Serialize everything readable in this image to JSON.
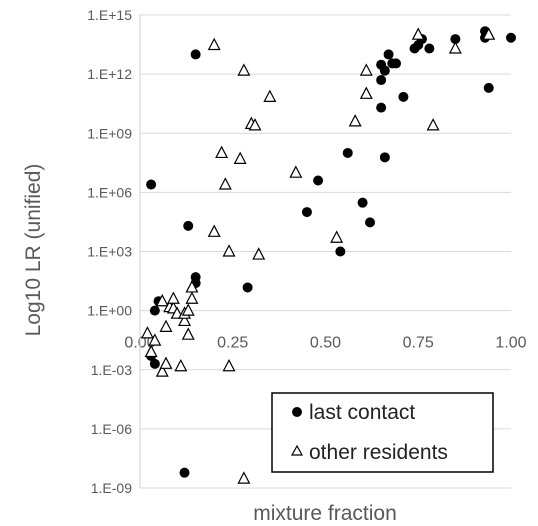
{
  "chart_data": {
    "type": "scatter",
    "xlabel": "mixture fraction",
    "ylabel": "Log10 LR (unified)",
    "xlim": [
      0,
      1
    ],
    "ylim_log10": [
      -9,
      15
    ],
    "y_scale": "log",
    "grid": "horizontal",
    "legend_position": "bottom-right",
    "x_ticks": [
      "0.00",
      "0.25",
      "0.50",
      "0.75",
      "1.00"
    ],
    "y_ticks": [
      {
        "exp": 15,
        "label": "1.E+15"
      },
      {
        "exp": 12,
        "label": "1.E+12"
      },
      {
        "exp": 9,
        "label": "1.E+09"
      },
      {
        "exp": 6,
        "label": "1.E+06"
      },
      {
        "exp": 3,
        "label": "1.E+03"
      },
      {
        "exp": 0,
        "label": "1.E+00"
      },
      {
        "exp": -3,
        "label": "1.E-03"
      },
      {
        "exp": -6,
        "label": "1.E-06"
      },
      {
        "exp": -9,
        "label": "1.E-09"
      }
    ],
    "series": [
      {
        "name": "last contact",
        "marker": "circle",
        "color": "#000000",
        "points": [
          {
            "x": 0.15,
            "y": 10000000000000.0
          },
          {
            "x": 0.03,
            "y": 2500000.0
          },
          {
            "x": 0.13,
            "y": 20000.0
          },
          {
            "x": 0.15,
            "y": 50
          },
          {
            "x": 0.15,
            "y": 25
          },
          {
            "x": 0.29,
            "y": 15
          },
          {
            "x": 0.05,
            "y": 3
          },
          {
            "x": 0.04,
            "y": 1
          },
          {
            "x": 0.03,
            "y": 0.005
          },
          {
            "x": 0.04,
            "y": 0.002
          },
          {
            "x": 0.12,
            "y": 6e-09
          },
          {
            "x": 0.48,
            "y": 4000000.0
          },
          {
            "x": 0.45,
            "y": 100000.0
          },
          {
            "x": 0.54,
            "y": 1000
          },
          {
            "x": 0.56,
            "y": 100000000.0
          },
          {
            "x": 0.6,
            "y": 300000.0
          },
          {
            "x": 0.62,
            "y": 30000.0
          },
          {
            "x": 0.65,
            "y": 500000000000.0
          },
          {
            "x": 0.65,
            "y": 3000000000000.0
          },
          {
            "x": 0.66,
            "y": 1500000000000.0
          },
          {
            "x": 0.67,
            "y": 10000000000000.0
          },
          {
            "x": 0.68,
            "y": 3500000000000.0
          },
          {
            "x": 0.69,
            "y": 3500000000000.0
          },
          {
            "x": 0.65,
            "y": 20000000000.0
          },
          {
            "x": 0.66,
            "y": 60000000.0
          },
          {
            "x": 0.71,
            "y": 70000000000.0
          },
          {
            "x": 0.74,
            "y": 20000000000000.0
          },
          {
            "x": 0.75,
            "y": 30000000000000.0
          },
          {
            "x": 0.76,
            "y": 60000000000000.0
          },
          {
            "x": 0.78,
            "y": 20000000000000.0
          },
          {
            "x": 0.85,
            "y": 60000000000000.0
          },
          {
            "x": 0.93,
            "y": 70000000000000.0
          },
          {
            "x": 0.93,
            "y": 150000000000000.0
          },
          {
            "x": 0.94,
            "y": 200000000000.0
          },
          {
            "x": 1.0,
            "y": 70000000000000.0
          }
        ]
      },
      {
        "name": "other residents",
        "marker": "triangle",
        "color": "#000000",
        "points": [
          {
            "x": 0.02,
            "y": 0.07
          },
          {
            "x": 0.03,
            "y": 0.008
          },
          {
            "x": 0.04,
            "y": 0.03
          },
          {
            "x": 0.06,
            "y": 3
          },
          {
            "x": 0.06,
            "y": 0.0008
          },
          {
            "x": 0.07,
            "y": 0.002
          },
          {
            "x": 0.07,
            "y": 0.15
          },
          {
            "x": 0.08,
            "y": 1.5
          },
          {
            "x": 0.09,
            "y": 1.3
          },
          {
            "x": 0.09,
            "y": 4
          },
          {
            "x": 0.1,
            "y": 0.7
          },
          {
            "x": 0.11,
            "y": 0.0015
          },
          {
            "x": 0.12,
            "y": 0.3
          },
          {
            "x": 0.12,
            "y": 0.7
          },
          {
            "x": 0.13,
            "y": 0.06
          },
          {
            "x": 0.13,
            "y": 1
          },
          {
            "x": 0.14,
            "y": 15
          },
          {
            "x": 0.14,
            "y": 4
          },
          {
            "x": 0.2,
            "y": 30000000000000.0
          },
          {
            "x": 0.2,
            "y": 10000.0
          },
          {
            "x": 0.22,
            "y": 100000000.0
          },
          {
            "x": 0.23,
            "y": 2500000.0
          },
          {
            "x": 0.24,
            "y": 1000
          },
          {
            "x": 0.24,
            "y": 0.0015
          },
          {
            "x": 0.27,
            "y": 50000000.0
          },
          {
            "x": 0.28,
            "y": 1500000000000.0
          },
          {
            "x": 0.28,
            "y": 3e-09
          },
          {
            "x": 0.3,
            "y": 3000000000.0
          },
          {
            "x": 0.31,
            "y": 2500000000.0
          },
          {
            "x": 0.32,
            "y": 700
          },
          {
            "x": 0.35,
            "y": 70000000000.0
          },
          {
            "x": 0.42,
            "y": 10000000.0
          },
          {
            "x": 0.53,
            "y": 5000
          },
          {
            "x": 0.58,
            "y": 4000000000.0
          },
          {
            "x": 0.61,
            "y": 1500000000000.0
          },
          {
            "x": 0.61,
            "y": 100000000000.0
          },
          {
            "x": 0.75,
            "y": 100000000000000.0
          },
          {
            "x": 0.79,
            "y": 2500000000.0
          },
          {
            "x": 0.85,
            "y": 20000000000000.0
          },
          {
            "x": 0.94,
            "y": 100000000000000.0
          }
        ]
      }
    ]
  }
}
